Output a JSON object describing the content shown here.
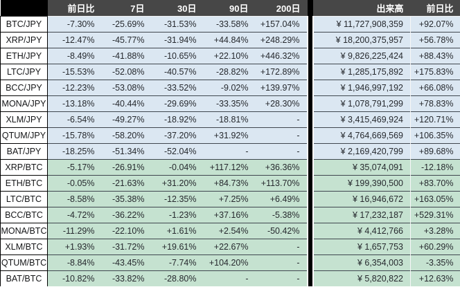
{
  "colors": {
    "header_bg": "#474747",
    "header_text": "#ffffff",
    "corner_bg": "#000000",
    "divider_bg": "#000000",
    "jpy_row_bg": "#dbe7f2",
    "btc_row_bg": "#c5e2d0",
    "name_cell_bg": "#ffffff"
  },
  "header": {
    "corner_label": "",
    "change_cols": [
      "前日比",
      "7日",
      "30日",
      "90日",
      "200日"
    ],
    "volume_col": "出来高",
    "volume_change_col": "前日比"
  },
  "groups": [
    {
      "id": "jpy",
      "rows": [
        {
          "pair": "BTC/JPY",
          "c1d": "-7.30%",
          "c7d": "-25.69%",
          "c30d": "-31.53%",
          "c90d": "-33.58%",
          "c200d": "+157.04%",
          "volume": "¥ 11,727,908,359",
          "v1d": "+92.07%"
        },
        {
          "pair": "XRP/JPY",
          "c1d": "-12.47%",
          "c7d": "-45.77%",
          "c30d": "-31.94%",
          "c90d": "+44.84%",
          "c200d": "+248.29%",
          "volume": "¥ 18,200,375,957",
          "v1d": "+56.78%"
        },
        {
          "pair": "ETH/JPY",
          "c1d": "-8.49%",
          "c7d": "-41.88%",
          "c30d": "-10.65%",
          "c90d": "+22.10%",
          "c200d": "+446.32%",
          "volume": "¥ 9,826,225,424",
          "v1d": "+88.43%"
        },
        {
          "pair": "LTC/JPY",
          "c1d": "-15.53%",
          "c7d": "-52.08%",
          "c30d": "-40.57%",
          "c90d": "-28.82%",
          "c200d": "+172.89%",
          "volume": "¥ 1,285,175,892",
          "v1d": "+175.83%"
        },
        {
          "pair": "BCC/JPY",
          "c1d": "-12.23%",
          "c7d": "-53.08%",
          "c30d": "-33.52%",
          "c90d": "-9.02%",
          "c200d": "+139.97%",
          "volume": "¥ 1,946,997,192",
          "v1d": "+66.08%"
        },
        {
          "pair": "MONA/JPY",
          "c1d": "-13.18%",
          "c7d": "-40.44%",
          "c30d": "-29.69%",
          "c90d": "-33.35%",
          "c200d": "+28.30%",
          "volume": "¥ 1,078,791,299",
          "v1d": "+78.83%"
        },
        {
          "pair": "XLM/JPY",
          "c1d": "-6.54%",
          "c7d": "-49.27%",
          "c30d": "-18.92%",
          "c90d": "-18.81%",
          "c200d": "-",
          "volume": "¥ 3,415,469,924",
          "v1d": "+120.71%"
        },
        {
          "pair": "QTUM/JPY",
          "c1d": "-15.78%",
          "c7d": "-58.20%",
          "c30d": "-37.20%",
          "c90d": "+31.92%",
          "c200d": "-",
          "volume": "¥ 4,764,669,569",
          "v1d": "+106.35%"
        },
        {
          "pair": "BAT/JPY",
          "c1d": "-18.25%",
          "c7d": "-51.34%",
          "c30d": "-52.04%",
          "c90d": "-",
          "c200d": "-",
          "volume": "¥ 2,169,420,799",
          "v1d": "+89.68%"
        }
      ]
    },
    {
      "id": "btc",
      "rows": [
        {
          "pair": "XRP/BTC",
          "c1d": "-5.17%",
          "c7d": "-26.91%",
          "c30d": "-0.04%",
          "c90d": "+117.12%",
          "c200d": "+36.36%",
          "volume": "¥ 35,074,091",
          "v1d": "-12.18%"
        },
        {
          "pair": "ETH/BTC",
          "c1d": "-0.05%",
          "c7d": "-21.63%",
          "c30d": "+31.20%",
          "c90d": "+84.73%",
          "c200d": "+113.70%",
          "volume": "¥ 199,390,500",
          "v1d": "+83.70%"
        },
        {
          "pair": "LTC/BTC",
          "c1d": "-8.58%",
          "c7d": "-35.38%",
          "c30d": "-12.35%",
          "c90d": "+7.25%",
          "c200d": "+6.49%",
          "volume": "¥ 16,946,672",
          "v1d": "+163.05%"
        },
        {
          "pair": "BCC/BTC",
          "c1d": "-4.72%",
          "c7d": "-36.22%",
          "c30d": "-1.23%",
          "c90d": "+37.16%",
          "c200d": "-5.38%",
          "volume": "¥ 17,232,187",
          "v1d": "+529.31%"
        },
        {
          "pair": "MONA/BTC",
          "c1d": "-11.29%",
          "c7d": "-22.10%",
          "c30d": "+1.61%",
          "c90d": "+2.54%",
          "c200d": "-50.42%",
          "volume": "¥ 4,412,766",
          "v1d": "+3.28%"
        },
        {
          "pair": "XLM/BTC",
          "c1d": "+1.93%",
          "c7d": "-31.72%",
          "c30d": "+19.61%",
          "c90d": "+22.67%",
          "c200d": "-",
          "volume": "¥ 1,657,753",
          "v1d": "+60.29%"
        },
        {
          "pair": "QTUM/BTC",
          "c1d": "-8.84%",
          "c7d": "-43.45%",
          "c30d": "-7.74%",
          "c90d": "+104.20%",
          "c200d": "-",
          "volume": "¥ 6,354,003",
          "v1d": "-3.35%"
        },
        {
          "pair": "BAT/BTC",
          "c1d": "-10.82%",
          "c7d": "-33.82%",
          "c30d": "-28.80%",
          "c90d": "-",
          "c200d": "-",
          "volume": "¥ 5,820,822",
          "v1d": "+12.63%"
        }
      ]
    }
  ]
}
